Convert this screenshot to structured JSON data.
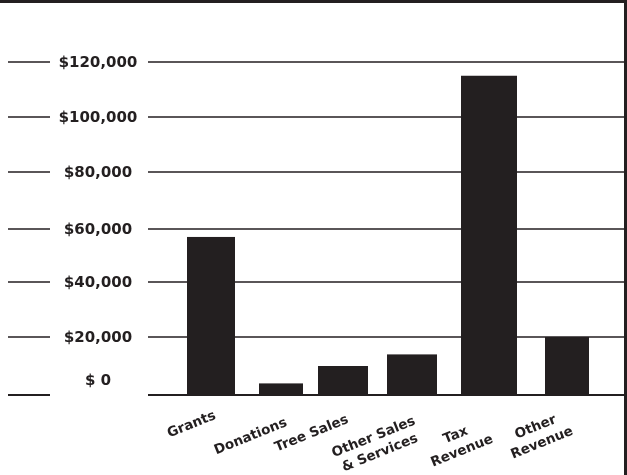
{
  "chart_data": {
    "type": "bar",
    "categories": [
      "Grants",
      "Donations",
      "Tree Sales",
      "Other Sales & Services",
      "Tax Revenue",
      "Other Revenue"
    ],
    "category_label_lines": [
      [
        "Grants"
      ],
      [
        "Donations"
      ],
      [
        "Tree Sales"
      ],
      [
        "Other Sales",
        "& Services"
      ],
      [
        "Tax",
        "Revenue"
      ],
      [
        "Other",
        "Revenue"
      ]
    ],
    "values": [
      57000,
      4000,
      10000,
      14000,
      115000,
      20000
    ],
    "tick_labels": [
      "$ 0",
      "$20,000",
      "$40,000",
      "$60,000",
      "$80,000",
      "$100,000",
      "$120,000"
    ],
    "tick_values": [
      0,
      20000,
      40000,
      60000,
      80000,
      100000,
      120000
    ],
    "ylim": [
      0,
      120000
    ],
    "title": "",
    "xlabel": "",
    "ylabel": "",
    "grid": true,
    "colors": {
      "bar": "#231f20",
      "grid": "#231f20",
      "text": "#231f20"
    }
  }
}
